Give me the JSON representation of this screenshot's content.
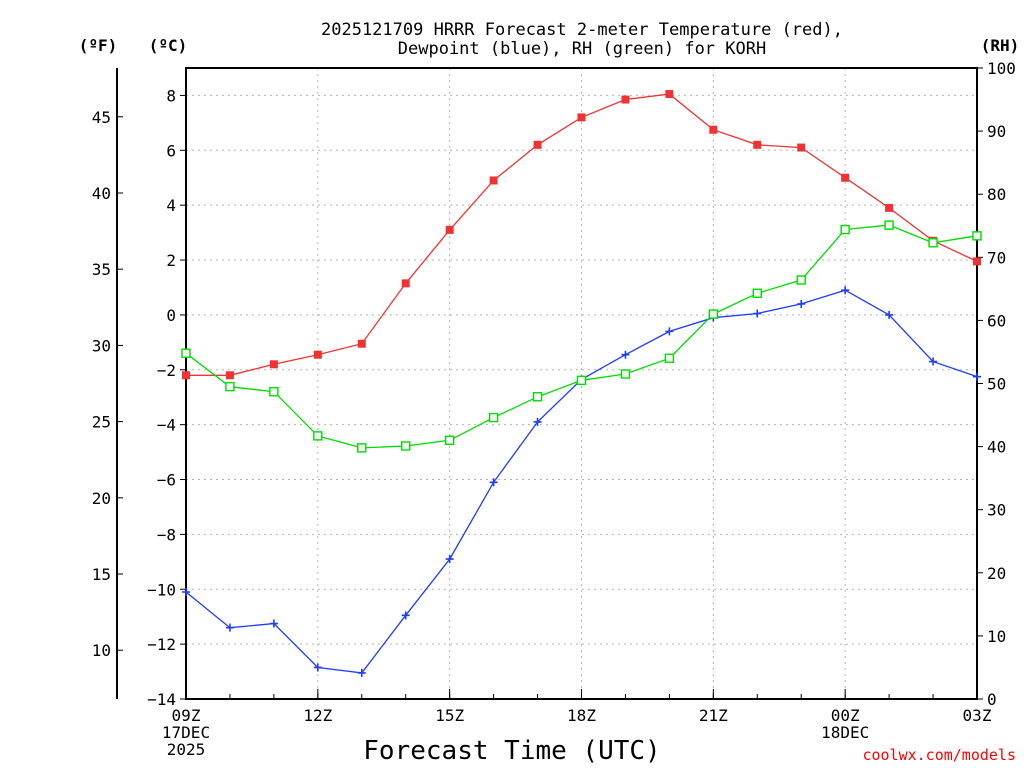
{
  "chart_data": {
    "type": "line",
    "title": [
      "2025121709 HRRR Forecast 2-meter Temperature (red),",
      "Dewpoint (blue), RH (green) for KORH"
    ],
    "xlabel": "Forecast Time (UTC)",
    "credit": "coolwx.com/models",
    "x_hours": [
      0,
      1,
      2,
      3,
      4,
      5,
      6,
      7,
      8,
      9,
      10,
      11,
      12,
      13,
      14,
      15,
      16,
      17,
      18
    ],
    "x_ticks": [
      {
        "hour": 0,
        "lines": [
          "09Z",
          "17DEC",
          "2025"
        ]
      },
      {
        "hour": 3,
        "lines": [
          "12Z"
        ]
      },
      {
        "hour": 6,
        "lines": [
          "15Z"
        ]
      },
      {
        "hour": 9,
        "lines": [
          "18Z"
        ]
      },
      {
        "hour": 12,
        "lines": [
          "21Z"
        ]
      },
      {
        "hour": 15,
        "lines": [
          "00Z",
          "18DEC"
        ]
      },
      {
        "hour": 18,
        "lines": [
          "03Z"
        ]
      }
    ],
    "xlim": [
      0,
      18
    ],
    "y_celsius": {
      "label": "(ºC)",
      "lim": [
        -14,
        9
      ],
      "ticks": [
        -14,
        -12,
        -10,
        -8,
        -6,
        -4,
        -2,
        0,
        2,
        4,
        6,
        8
      ]
    },
    "y_fahrenheit": {
      "label": "(ºF)",
      "ticks": [
        10,
        15,
        20,
        25,
        30,
        35,
        40,
        45
      ]
    },
    "y_rh": {
      "label": "(RH)",
      "lim": [
        0,
        100
      ],
      "ticks": [
        0,
        10,
        20,
        30,
        40,
        50,
        60,
        70,
        80,
        90,
        100
      ]
    },
    "grid": true,
    "series": [
      {
        "name": "Temperature",
        "axis": "celsius",
        "color": "#f03232",
        "marker": "filled-square",
        "values": [
          -2.2,
          -2.2,
          -1.8,
          -1.45,
          -1.05,
          1.15,
          3.1,
          4.9,
          6.2,
          7.2,
          7.85,
          8.05,
          6.75,
          6.2,
          6.1,
          5.0,
          3.9,
          2.7,
          1.95
        ]
      },
      {
        "name": "Dewpoint",
        "axis": "celsius",
        "color": "#1e3cff",
        "marker": "plus",
        "values": [
          -10.1,
          -11.4,
          -11.25,
          -12.85,
          -13.05,
          -10.95,
          -8.9,
          -6.1,
          -3.9,
          -2.35,
          -1.45,
          -0.6,
          -0.1,
          0.05,
          0.4,
          0.9,
          0.0,
          -1.7,
          -2.25
        ]
      },
      {
        "name": "RH",
        "axis": "rh",
        "color": "#00dc00",
        "marker": "open-square",
        "values": [
          54.8,
          49.5,
          48.7,
          41.7,
          39.8,
          40.1,
          41.0,
          44.6,
          47.9,
          50.5,
          51.5,
          54.0,
          61.0,
          64.3,
          66.4,
          74.4,
          75.1,
          72.3,
          73.4
        ]
      }
    ]
  }
}
